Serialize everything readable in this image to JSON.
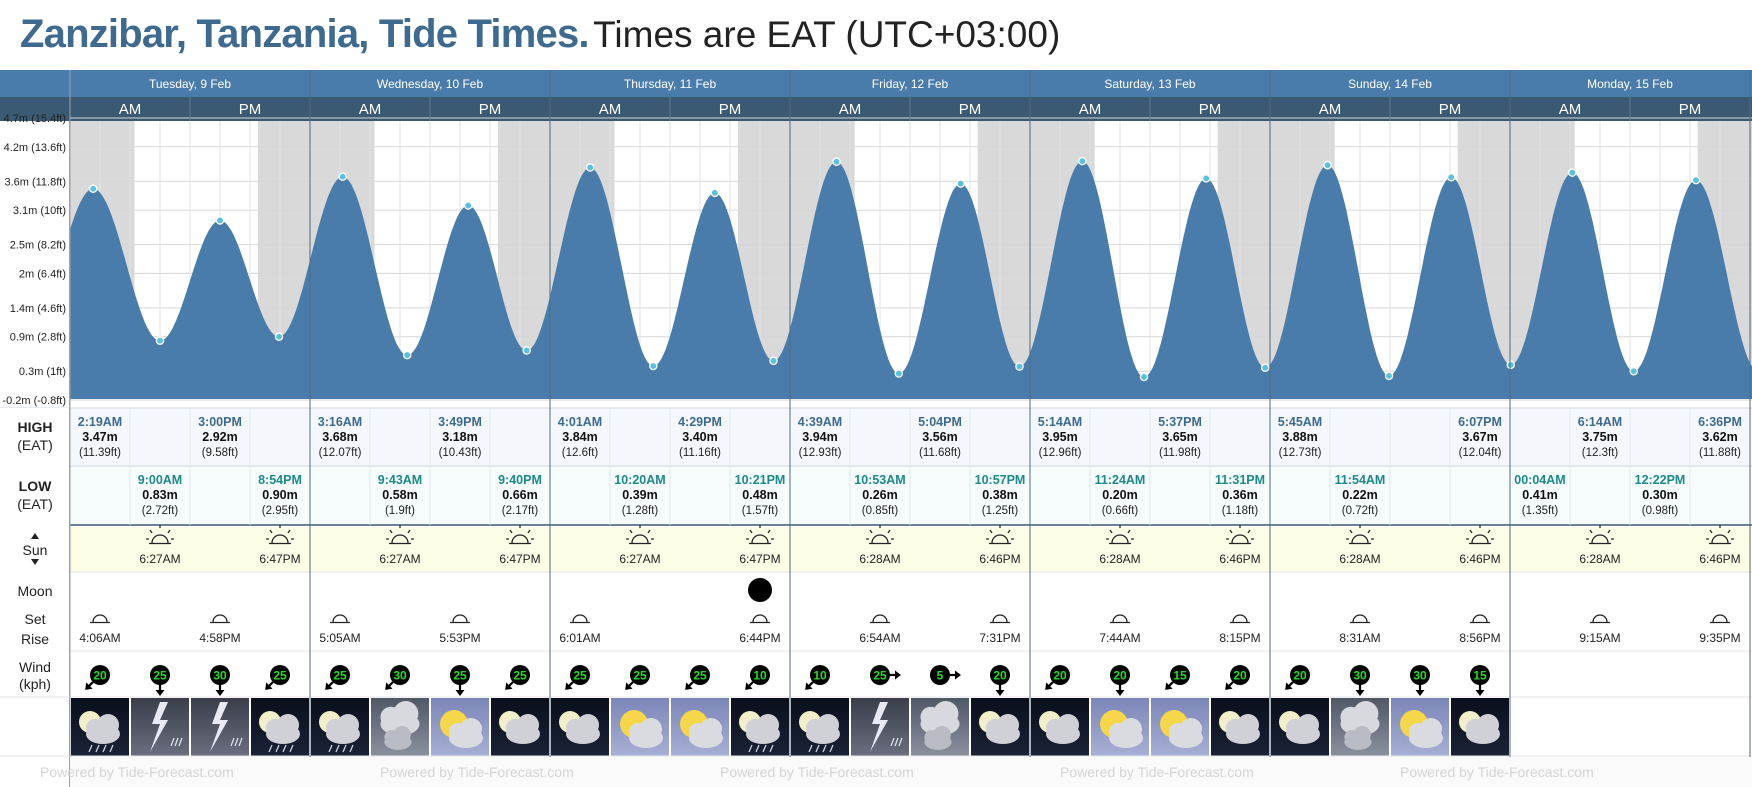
{
  "title": {
    "main": "Zanzibar, Tanzania, Tide Times.",
    "sub": "Times are EAT (UTC+03:00)"
  },
  "colors": {
    "tide": "#4a7cab",
    "header": "#4a7cab",
    "subheader": "#3a5a73",
    "night": "#d9d9d9",
    "high": "#3e6a8f",
    "low": "#1d8a8a",
    "point": "#5bc0de"
  },
  "ampm": {
    "am": "AM",
    "pm": "PM"
  },
  "row_labels": {
    "high": "HIGH",
    "low": "LOW",
    "tz": "(EAT)",
    "sun": "Sun",
    "moon": "Moon",
    "set": "Set",
    "rise": "Rise",
    "wind": "Wind",
    "wind_unit": "(kph)"
  },
  "watermark": "Powered by Tide-Forecast.com",
  "chart_data": {
    "type": "area",
    "days": [
      "Tuesday, 9 Feb",
      "Wednesday, 10 Feb",
      "Thursday, 11 Feb",
      "Friday, 12 Feb",
      "Saturday, 13 Feb",
      "Sunday, 14 Feb",
      "Monday, 15 Feb"
    ],
    "y_ticks": [
      "4.7m (15.4ft)",
      "4.2m (13.6ft)",
      "3.6m (11.8ft)",
      "3.1m (10ft)",
      "2.5m (8.2ft)",
      "2m (6.4ft)",
      "1.4m (4.6ft)",
      "0.9m (2.8ft)",
      "0.3m (1ft)",
      "-0.2m (-0.8ft)"
    ],
    "y_tick_values": [
      4.7,
      4.2,
      3.6,
      3.1,
      2.5,
      2.0,
      1.4,
      0.9,
      0.3,
      -0.2
    ],
    "ylim": [
      -0.2,
      4.7
    ],
    "extremes": [
      {
        "day": 0,
        "hour": 2.32,
        "m": 3.47,
        "type": "high",
        "time": "2:19AM",
        "h": "3.47m",
        "ft": "(11.39ft)"
      },
      {
        "day": 0,
        "hour": 9.0,
        "m": 0.83,
        "type": "low",
        "time": "9:00AM",
        "h": "0.83m",
        "ft": "(2.72ft)"
      },
      {
        "day": 0,
        "hour": 15.0,
        "m": 2.92,
        "type": "high",
        "time": "3:00PM",
        "h": "2.92m",
        "ft": "(9.58ft)"
      },
      {
        "day": 0,
        "hour": 20.9,
        "m": 0.9,
        "type": "low",
        "time": "8:54PM",
        "h": "0.90m",
        "ft": "(2.95ft)"
      },
      {
        "day": 1,
        "hour": 3.27,
        "m": 3.68,
        "type": "high",
        "time": "3:16AM",
        "h": "3.68m",
        "ft": "(12.07ft)"
      },
      {
        "day": 1,
        "hour": 9.72,
        "m": 0.58,
        "type": "low",
        "time": "9:43AM",
        "h": "0.58m",
        "ft": "(1.9ft)"
      },
      {
        "day": 1,
        "hour": 15.82,
        "m": 3.18,
        "type": "high",
        "time": "3:49PM",
        "h": "3.18m",
        "ft": "(10.43ft)"
      },
      {
        "day": 1,
        "hour": 21.67,
        "m": 0.66,
        "type": "low",
        "time": "9:40PM",
        "h": "0.66m",
        "ft": "(2.17ft)"
      },
      {
        "day": 2,
        "hour": 4.02,
        "m": 3.84,
        "type": "high",
        "time": "4:01AM",
        "h": "3.84m",
        "ft": "(12.6ft)"
      },
      {
        "day": 2,
        "hour": 10.33,
        "m": 0.39,
        "type": "low",
        "time": "10:20AM",
        "h": "0.39m",
        "ft": "(1.28ft)"
      },
      {
        "day": 2,
        "hour": 16.48,
        "m": 3.4,
        "type": "high",
        "time": "4:29PM",
        "h": "3.40m",
        "ft": "(11.16ft)"
      },
      {
        "day": 2,
        "hour": 22.35,
        "m": 0.48,
        "type": "low",
        "time": "10:21PM",
        "h": "0.48m",
        "ft": "(1.57ft)"
      },
      {
        "day": 3,
        "hour": 4.65,
        "m": 3.94,
        "type": "high",
        "time": "4:39AM",
        "h": "3.94m",
        "ft": "(12.93ft)"
      },
      {
        "day": 3,
        "hour": 10.88,
        "m": 0.26,
        "type": "low",
        "time": "10:53AM",
        "h": "0.26m",
        "ft": "(0.85ft)"
      },
      {
        "day": 3,
        "hour": 17.07,
        "m": 3.56,
        "type": "high",
        "time": "5:04PM",
        "h": "3.56m",
        "ft": "(11.68ft)"
      },
      {
        "day": 3,
        "hour": 22.95,
        "m": 0.38,
        "type": "low",
        "time": "10:57PM",
        "h": "0.38m",
        "ft": "(1.25ft)"
      },
      {
        "day": 4,
        "hour": 5.23,
        "m": 3.95,
        "type": "high",
        "time": "5:14AM",
        "h": "3.95m",
        "ft": "(12.96ft)"
      },
      {
        "day": 4,
        "hour": 11.4,
        "m": 0.2,
        "type": "low",
        "time": "11:24AM",
        "h": "0.20m",
        "ft": "(0.66ft)"
      },
      {
        "day": 4,
        "hour": 17.62,
        "m": 3.65,
        "type": "high",
        "time": "5:37PM",
        "h": "3.65m",
        "ft": "(11.98ft)"
      },
      {
        "day": 4,
        "hour": 23.52,
        "m": 0.36,
        "type": "low",
        "time": "11:31PM",
        "h": "0.36m",
        "ft": "(1.18ft)"
      },
      {
        "day": 5,
        "hour": 5.75,
        "m": 3.88,
        "type": "high",
        "time": "5:45AM",
        "h": "3.88m",
        "ft": "(12.73ft)"
      },
      {
        "day": 5,
        "hour": 11.9,
        "m": 0.22,
        "type": "low",
        "time": "11:54AM",
        "h": "0.22m",
        "ft": "(0.72ft)"
      },
      {
        "day": 5,
        "hour": 18.12,
        "m": 3.67,
        "type": "high",
        "time": "6:07PM",
        "h": "3.67m",
        "ft": "(12.04ft)"
      },
      {
        "day": 6,
        "hour": 0.07,
        "m": 0.41,
        "type": "low",
        "time": "00:04AM",
        "h": "0.41m",
        "ft": "(1.35ft)"
      },
      {
        "day": 6,
        "hour": 6.23,
        "m": 3.75,
        "type": "high",
        "time": "6:14AM",
        "h": "3.75m",
        "ft": "(12.3ft)"
      },
      {
        "day": 6,
        "hour": 12.37,
        "m": 0.3,
        "type": "low",
        "time": "12:22PM",
        "h": "0.30m",
        "ft": "(0.98ft)"
      },
      {
        "day": 6,
        "hour": 18.6,
        "m": 3.62,
        "type": "high",
        "time": "6:36PM",
        "h": "3.62m",
        "ft": "(11.88ft)"
      }
    ],
    "sun": [
      {
        "day": 0,
        "rise": "6:27AM",
        "set": "6:47PM"
      },
      {
        "day": 1,
        "rise": "6:27AM",
        "set": "6:47PM"
      },
      {
        "day": 2,
        "rise": "6:27AM",
        "set": "6:47PM"
      },
      {
        "day": 3,
        "rise": "6:28AM",
        "set": "6:46PM"
      },
      {
        "day": 4,
        "rise": "6:28AM",
        "set": "6:46PM"
      },
      {
        "day": 5,
        "rise": "6:28AM",
        "set": "6:46PM"
      },
      {
        "day": 6,
        "rise": "6:28AM",
        "set": "6:46PM"
      }
    ],
    "moon": [
      {
        "day": 0,
        "half": 0,
        "time": "4:06AM",
        "icon": "moonset-icon"
      },
      {
        "day": 0,
        "half": 1,
        "time": "4:58PM",
        "icon": "moonset-icon"
      },
      {
        "day": 1,
        "half": 0,
        "time": "5:05AM",
        "icon": "moonset-icon"
      },
      {
        "day": 1,
        "half": 1,
        "time": "5:53PM",
        "icon": "moonset-icon"
      },
      {
        "day": 2,
        "half": 0,
        "time": "6:01AM",
        "icon": "moonset-icon"
      },
      {
        "day": 2,
        "half": 1,
        "time": "6:44PM",
        "icon": "moonrise-icon",
        "new_moon": true
      },
      {
        "day": 3,
        "half": 0,
        "time": "6:54AM",
        "icon": "moonrise-icon"
      },
      {
        "day": 3,
        "half": 1,
        "time": "7:31PM",
        "icon": "moonrise-icon"
      },
      {
        "day": 4,
        "half": 0,
        "time": "7:44AM",
        "icon": "moonrise-icon"
      },
      {
        "day": 4,
        "half": 1,
        "time": "8:15PM",
        "icon": "moonrise-icon"
      },
      {
        "day": 5,
        "half": 0,
        "time": "8:31AM",
        "icon": "moonrise-icon"
      },
      {
        "day": 5,
        "half": 1,
        "time": "8:56PM",
        "icon": "moonrise-icon"
      },
      {
        "day": 6,
        "half": 0,
        "time": "9:15AM",
        "icon": "moonrise-icon"
      },
      {
        "day": 6,
        "half": 1,
        "time": "9:35PM",
        "icon": "moonrise-icon"
      }
    ],
    "wind": [
      {
        "speed": 20,
        "dir": "SW"
      },
      {
        "speed": 25,
        "dir": "S"
      },
      {
        "speed": 30,
        "dir": "S"
      },
      {
        "speed": 25,
        "dir": "SW"
      },
      {
        "speed": 25,
        "dir": "SW"
      },
      {
        "speed": 30,
        "dir": "SW"
      },
      {
        "speed": 25,
        "dir": "S"
      },
      {
        "speed": 25,
        "dir": "SW"
      },
      {
        "speed": 25,
        "dir": "SW"
      },
      {
        "speed": 25,
        "dir": "SW"
      },
      {
        "speed": 25,
        "dir": "SW"
      },
      {
        "speed": 10,
        "dir": "SW"
      },
      {
        "speed": 10,
        "dir": "SW"
      },
      {
        "speed": 25,
        "dir": "E"
      },
      {
        "speed": 5,
        "dir": "E"
      },
      {
        "speed": 20,
        "dir": "S"
      },
      {
        "speed": 20,
        "dir": "SW"
      },
      {
        "speed": 20,
        "dir": "S"
      },
      {
        "speed": 15,
        "dir": "SW"
      },
      {
        "speed": 20,
        "dir": "SW"
      },
      {
        "speed": 20,
        "dir": "SW"
      },
      {
        "speed": 30,
        "dir": "S"
      },
      {
        "speed": 30,
        "dir": "S"
      },
      {
        "speed": 15,
        "dir": "S"
      }
    ],
    "weather": [
      {
        "icon": "rain-night-icon",
        "night": true
      },
      {
        "icon": "thunderstorm-icon",
        "night": false
      },
      {
        "icon": "thunderstorm-icon",
        "night": false
      },
      {
        "icon": "rain-night-icon",
        "night": true
      },
      {
        "icon": "rain-night-icon",
        "night": true
      },
      {
        "icon": "overcast-icon",
        "night": false
      },
      {
        "icon": "partly-sunny-icon",
        "night": false
      },
      {
        "icon": "partly-cloudy-night-icon",
        "night": true
      },
      {
        "icon": "partly-cloudy-night-icon",
        "night": true
      },
      {
        "icon": "partly-sunny-icon",
        "night": false
      },
      {
        "icon": "partly-sunny-icon",
        "night": false
      },
      {
        "icon": "rain-night-icon",
        "night": true
      },
      {
        "icon": "rain-night-icon",
        "night": true
      },
      {
        "icon": "thunderstorm-icon",
        "night": false
      },
      {
        "icon": "overcast-icon",
        "night": false
      },
      {
        "icon": "partly-cloudy-night-icon",
        "night": true
      },
      {
        "icon": "partly-cloudy-night-icon",
        "night": true
      },
      {
        "icon": "partly-sunny-icon",
        "night": false
      },
      {
        "icon": "partly-sunny-icon",
        "night": false
      },
      {
        "icon": "partly-cloudy-night-icon",
        "night": true
      },
      {
        "icon": "partly-cloudy-night-icon",
        "night": true
      },
      {
        "icon": "overcast-icon",
        "night": false
      },
      {
        "icon": "partly-sunny-icon",
        "night": false
      },
      {
        "icon": "partly-cloudy-night-icon",
        "night": true
      }
    ]
  }
}
